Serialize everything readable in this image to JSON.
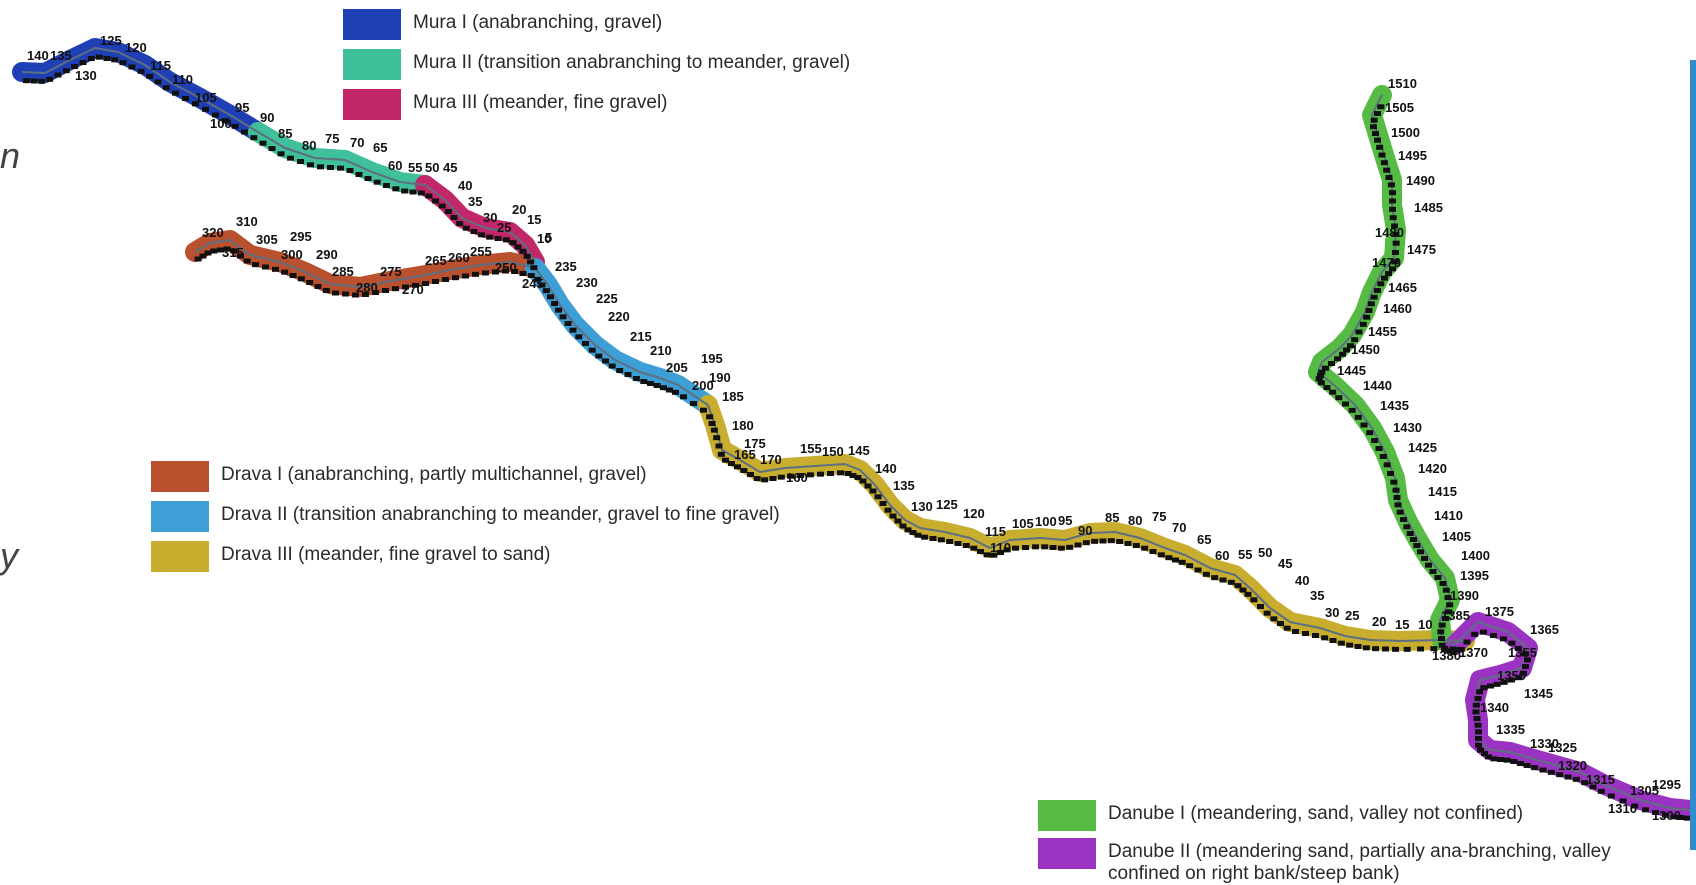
{
  "colors": {
    "mura_i": "#1f40b5",
    "mura_ii": "#3fbf9a",
    "mura_iii": "#c2276a",
    "drava_i": "#b9502e",
    "drava_ii": "#3d9fd6",
    "drava_iii": "#c8ad2f",
    "danube_i": "#55bb44",
    "danube_ii": "#9b33c2",
    "channel": "#5d6f80"
  },
  "legend": {
    "mura": [
      {
        "key": "mura_i",
        "label": "Mura I (anabranching, gravel)"
      },
      {
        "key": "mura_ii",
        "label": "Mura II (transition anabranching to meander, gravel)"
      },
      {
        "key": "mura_iii",
        "label": "Mura III (meander, fine gravel)"
      }
    ],
    "drava": [
      {
        "key": "drava_i",
        "label": "Drava I (anabranching, partly multichannel, gravel)"
      },
      {
        "key": "drava_ii",
        "label": "Drava II (transition anabranching to meander, gravel to fine gravel)"
      },
      {
        "key": "drava_iii",
        "label": "Drava III (meander, fine gravel to sand)"
      }
    ],
    "danube": [
      {
        "key": "danube_i",
        "label": "Danube I (meandering, sand, valley not confined)"
      },
      {
        "key": "danube_ii",
        "label": "Danube II (meandering sand, partially ana-branching, valley confined on right bank/steep bank)"
      }
    ]
  },
  "edge_text": [
    "n",
    "y"
  ],
  "km_labels": {
    "mura": [
      "140",
      "135",
      "130",
      "125",
      "120",
      "115",
      "110",
      "105",
      "100",
      "95",
      "90",
      "85",
      "80",
      "75",
      "70",
      "65",
      "60",
      "55",
      "50",
      "45",
      "40",
      "35",
      "30",
      "25",
      "20",
      "15",
      "10",
      "5"
    ],
    "drava": [
      "320",
      "315",
      "310",
      "305",
      "300",
      "295",
      "290",
      "285",
      "280",
      "275",
      "270",
      "265",
      "260",
      "255",
      "250",
      "245",
      "235",
      "230",
      "225",
      "220",
      "215",
      "210",
      "205",
      "200",
      "195",
      "190",
      "185",
      "180",
      "175",
      "170",
      "165",
      "160",
      "155",
      "150",
      "145",
      "140",
      "135",
      "130",
      "125",
      "120",
      "115",
      "110",
      "105",
      "100",
      "95",
      "90",
      "85",
      "80",
      "75",
      "70",
      "65",
      "60",
      "55",
      "50",
      "45",
      "40",
      "35",
      "30",
      "25",
      "20",
      "15",
      "10"
    ],
    "danube": [
      "1510",
      "1505",
      "1500",
      "1495",
      "1490",
      "1485",
      "1480",
      "1475",
      "1470",
      "1465",
      "1460",
      "1455",
      "1450",
      "1445",
      "1440",
      "1435",
      "1430",
      "1425",
      "1420",
      "1415",
      "1410",
      "1405",
      "1400",
      "1395",
      "1390",
      "1385",
      "1380",
      "1375",
      "1370",
      "1365",
      "1355",
      "1350",
      "1345",
      "1340",
      "1335",
      "1330",
      "1325",
      "1320",
      "1315",
      "1310",
      "1305",
      "1300",
      "1295"
    ]
  }
}
